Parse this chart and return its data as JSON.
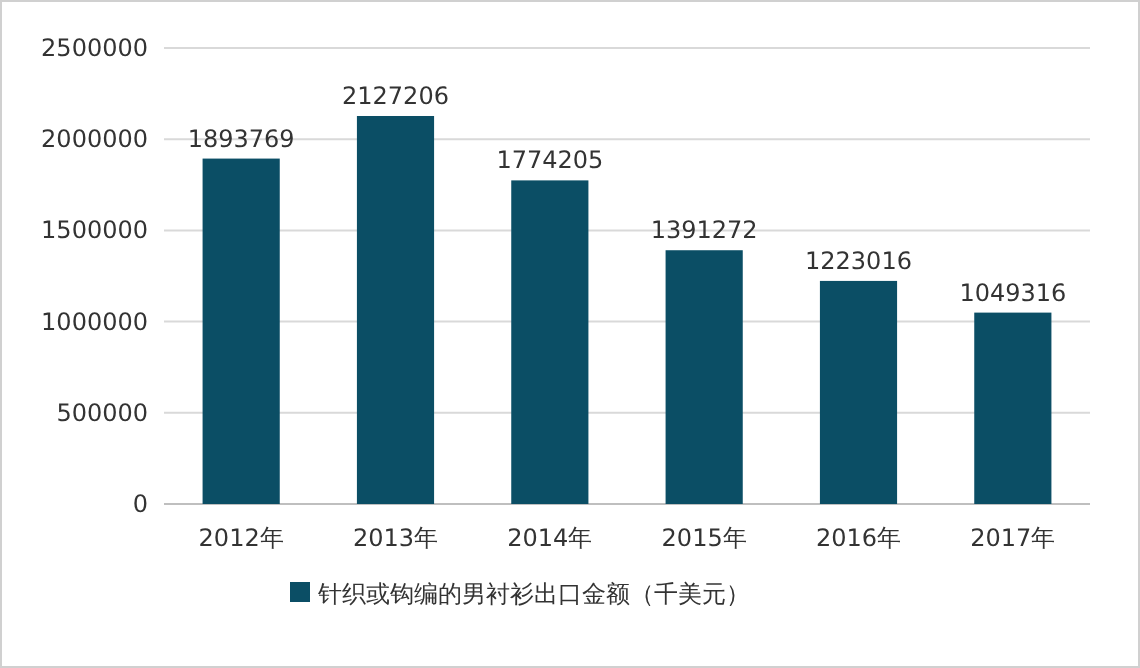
{
  "chart_data": {
    "type": "bar",
    "categories": [
      "2012年",
      "2013年",
      "2014年",
      "2015年",
      "2016年",
      "2017年"
    ],
    "series": [
      {
        "name": "针织或钩编的男衬衫出口金额（千美元）",
        "color": "#0b4e65",
        "values": [
          1893769,
          2127206,
          1774205,
          1391272,
          1223016,
          1049316
        ]
      }
    ],
    "ylim": [
      0,
      2500000
    ],
    "yticks": [
      0,
      500000,
      1000000,
      1500000,
      2000000,
      2500000
    ],
    "grid": "y",
    "legend": "bottom",
    "data_labels": true
  }
}
